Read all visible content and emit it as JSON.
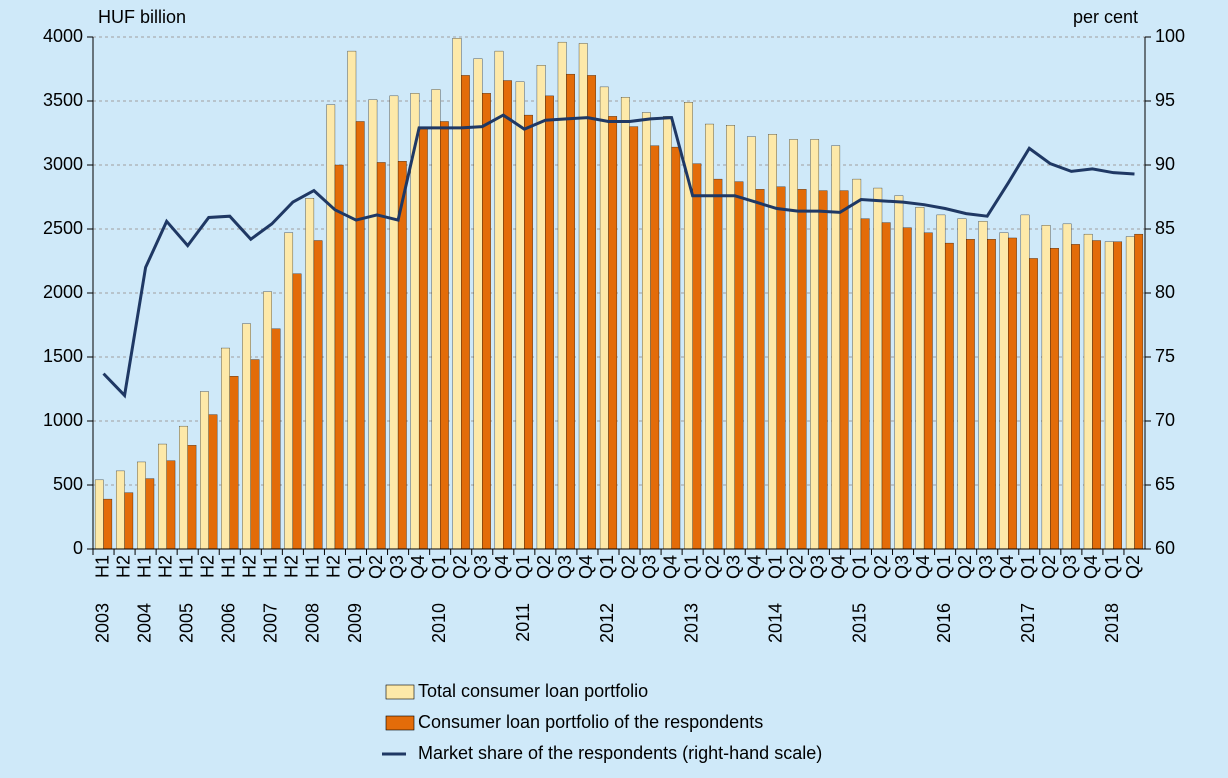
{
  "chart_data": {
    "type": "bar-line",
    "y_label": "HUF billion",
    "y2_label": "per cent",
    "categories": [
      "H1",
      "H2",
      "H1",
      "H2",
      "H1",
      "H2",
      "H1",
      "H2",
      "H1",
      "H2",
      "H1",
      "H2",
      "Q1",
      "Q2",
      "Q3",
      "Q4",
      "Q1",
      "Q2",
      "Q3",
      "Q4",
      "Q1",
      "Q2",
      "Q3",
      "Q4",
      "Q1",
      "Q2",
      "Q3",
      "Q4",
      "Q1",
      "Q2",
      "Q3",
      "Q4",
      "Q1",
      "Q2",
      "Q3",
      "Q4",
      "Q1",
      "Q2",
      "Q3",
      "Q4",
      "Q1",
      "Q2",
      "Q3",
      "Q4",
      "Q1",
      "Q2",
      "Q3",
      "Q4",
      "Q1",
      "Q2"
    ],
    "years": [
      "2003",
      null,
      "2004",
      null,
      "2005",
      null,
      "2006",
      null,
      "2007",
      null,
      "2008",
      null,
      "2009",
      null,
      null,
      null,
      "2010",
      null,
      null,
      null,
      "2011",
      null,
      null,
      null,
      "2012",
      null,
      null,
      null,
      "2013",
      null,
      null,
      null,
      "2014",
      null,
      null,
      null,
      "2015",
      null,
      null,
      null,
      "2016",
      null,
      null,
      null,
      "2017",
      null,
      null,
      null,
      "2018",
      null
    ],
    "series": [
      {
        "name": "Total consumer loan portfolio",
        "color": "#fde9a9",
        "values": [
          540,
          610,
          680,
          820,
          960,
          1230,
          1570,
          1760,
          2010,
          2470,
          2740,
          3470,
          3890,
          3510,
          3540,
          3560,
          3590,
          3990,
          3830,
          3890,
          3650,
          3780,
          3960,
          3950,
          3610,
          3530,
          3410,
          3380,
          3490,
          3320,
          3310,
          3220,
          3240,
          3200,
          3200,
          3150,
          2890,
          2820,
          2760,
          2670,
          2610,
          2580,
          2560,
          2470,
          2610,
          2530,
          2540,
          2460,
          2400,
          2440
        ]
      },
      {
        "name": "Consumer loan portfolio of the respondents",
        "color": "#e36c09",
        "values": [
          390,
          440,
          550,
          690,
          810,
          1050,
          1350,
          1480,
          1720,
          2150,
          2410,
          3000,
          3340,
          3020,
          3030,
          3290,
          3340,
          3700,
          3560,
          3660,
          3390,
          3540,
          3710,
          3700,
          3380,
          3300,
          3150,
          3140,
          3010,
          2890,
          2870,
          2810,
          2830,
          2810,
          2800,
          2800,
          2580,
          2550,
          2510,
          2470,
          2390,
          2420,
          2420,
          2430,
          2270,
          2350,
          2380,
          2410,
          2400,
          2460
        ]
      },
      {
        "name": "Market share of the respondents (right-hand scale)",
        "color": "#1f3864",
        "axis": "y2",
        "values": [
          73.7,
          72,
          82,
          85.6,
          83.7,
          85.9,
          86,
          84.2,
          85.4,
          87.1,
          88,
          86.5,
          85.7,
          86.1,
          85.7,
          92.9,
          92.9,
          92.9,
          93,
          93.9,
          92.8,
          93.5,
          93.6,
          93.7,
          93.4,
          93.4,
          93.6,
          93.7,
          87.6,
          87.6,
          87.6,
          87.1,
          86.6,
          86.4,
          86.4,
          86.3,
          87.3,
          87.2,
          87.1,
          86.9,
          86.6,
          86.2,
          86,
          88.6,
          91.3,
          90.1,
          89.5,
          89.7,
          89.4,
          89.3
        ]
      }
    ],
    "ylim": [
      0,
      4000
    ],
    "yticks": [
      0,
      500,
      1000,
      1500,
      2000,
      2500,
      3000,
      3500,
      4000
    ],
    "y2lim": [
      60,
      100
    ],
    "y2ticks": [
      60,
      65,
      70,
      75,
      80,
      85,
      90,
      95,
      100
    ],
    "grid": true
  }
}
